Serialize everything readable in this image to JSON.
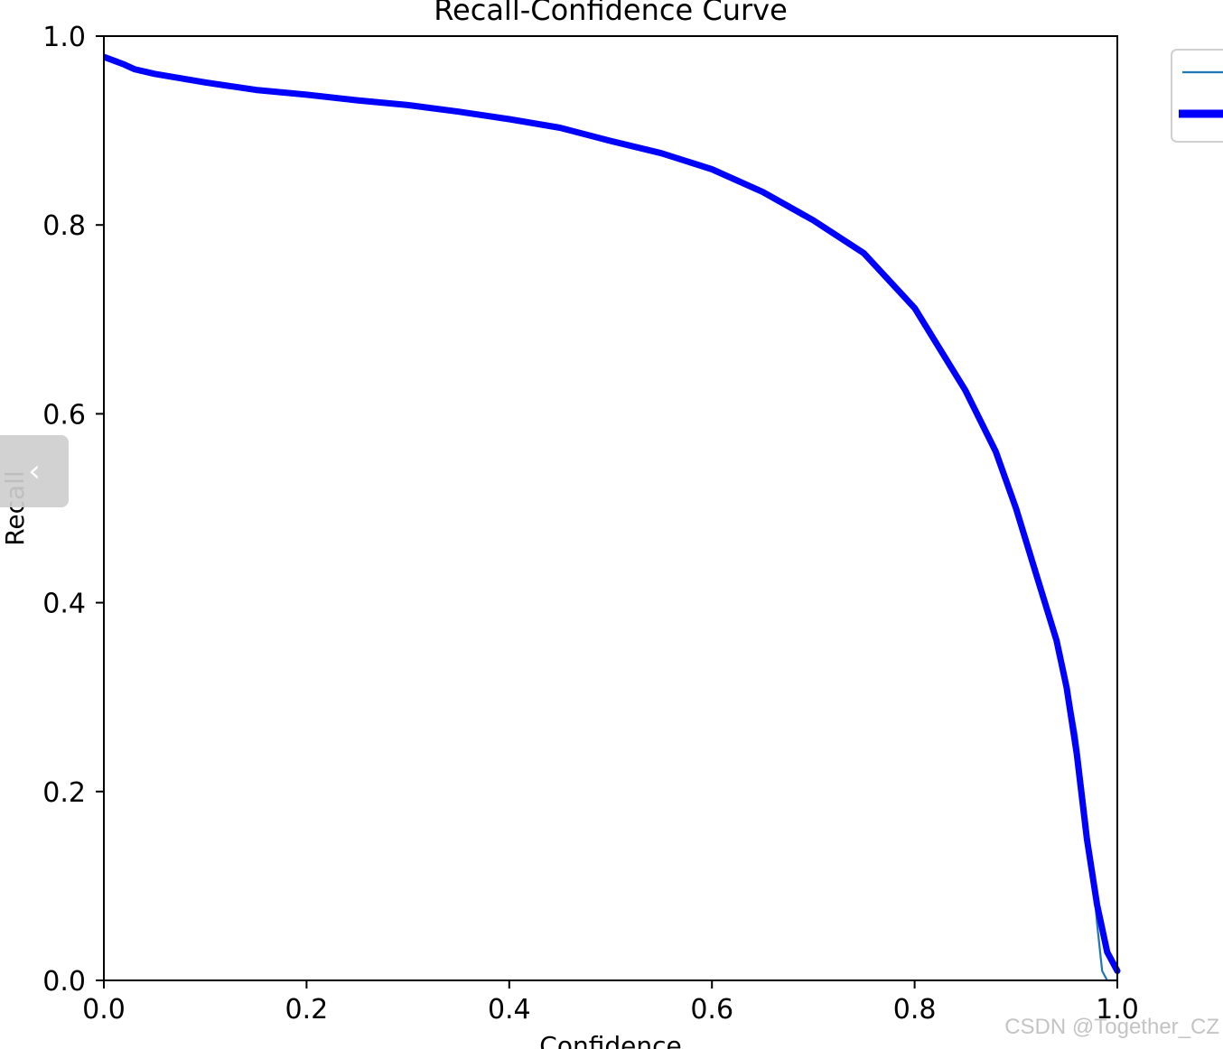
{
  "chart_data": {
    "type": "line",
    "title": "Recall-Confidence Curve",
    "xlabel": "Confidence",
    "ylabel": "Recall",
    "xlim": [
      0,
      1
    ],
    "ylim": [
      0,
      1
    ],
    "x_ticks": [
      "0.0",
      "0.2",
      "0.4",
      "0.6",
      "0.8",
      "1.0"
    ],
    "y_ticks": [
      "0.0",
      "0.2",
      "0.4",
      "0.6",
      "0.8",
      "1.0"
    ],
    "grid": false,
    "legend_placement": "outside top-right (clipped)",
    "series": [
      {
        "color": "#1f77b4",
        "style": "thin",
        "x": [
          0,
          0.02,
          0.03,
          0.05,
          0.1,
          0.15,
          0.2,
          0.25,
          0.3,
          0.35,
          0.4,
          0.45,
          0.5,
          0.55,
          0.6,
          0.65,
          0.7,
          0.75,
          0.8,
          0.85,
          0.88,
          0.9,
          0.92,
          0.94,
          0.95,
          0.96,
          0.97,
          0.975,
          0.98,
          0.985,
          0.99,
          1.0
        ],
        "y": [
          0.978,
          0.97,
          0.965,
          0.96,
          0.951,
          0.943,
          0.938,
          0.932,
          0.927,
          0.92,
          0.912,
          0.903,
          0.889,
          0.876,
          0.859,
          0.835,
          0.805,
          0.77,
          0.712,
          0.625,
          0.56,
          0.5,
          0.43,
          0.36,
          0.32,
          0.26,
          0.17,
          0.12,
          0.06,
          0.01,
          0.0,
          0.0
        ]
      },
      {
        "color": "#0000ff",
        "style": "thick",
        "x": [
          0,
          0.02,
          0.03,
          0.05,
          0.1,
          0.15,
          0.2,
          0.25,
          0.3,
          0.35,
          0.4,
          0.45,
          0.5,
          0.55,
          0.6,
          0.65,
          0.7,
          0.75,
          0.8,
          0.85,
          0.88,
          0.9,
          0.92,
          0.94,
          0.95,
          0.96,
          0.97,
          0.98,
          0.99,
          1.0
        ],
        "y": [
          0.978,
          0.97,
          0.965,
          0.96,
          0.951,
          0.943,
          0.938,
          0.932,
          0.927,
          0.92,
          0.912,
          0.903,
          0.889,
          0.876,
          0.859,
          0.835,
          0.805,
          0.77,
          0.712,
          0.625,
          0.56,
          0.5,
          0.43,
          0.36,
          0.31,
          0.24,
          0.15,
          0.08,
          0.03,
          0.01
        ]
      }
    ]
  },
  "overlay": {
    "nav_arrow_glyph": "‹",
    "watermark": "CSDN @Together_CZ"
  }
}
